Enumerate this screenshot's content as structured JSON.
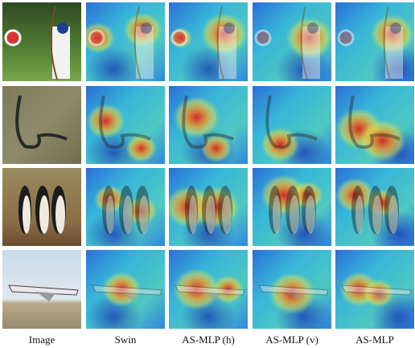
{
  "figure": {
    "columns": [
      "Image",
      "Swin",
      "AS-MLP (h)",
      "AS-MLP (v)",
      "AS-MLP"
    ]
  }
}
